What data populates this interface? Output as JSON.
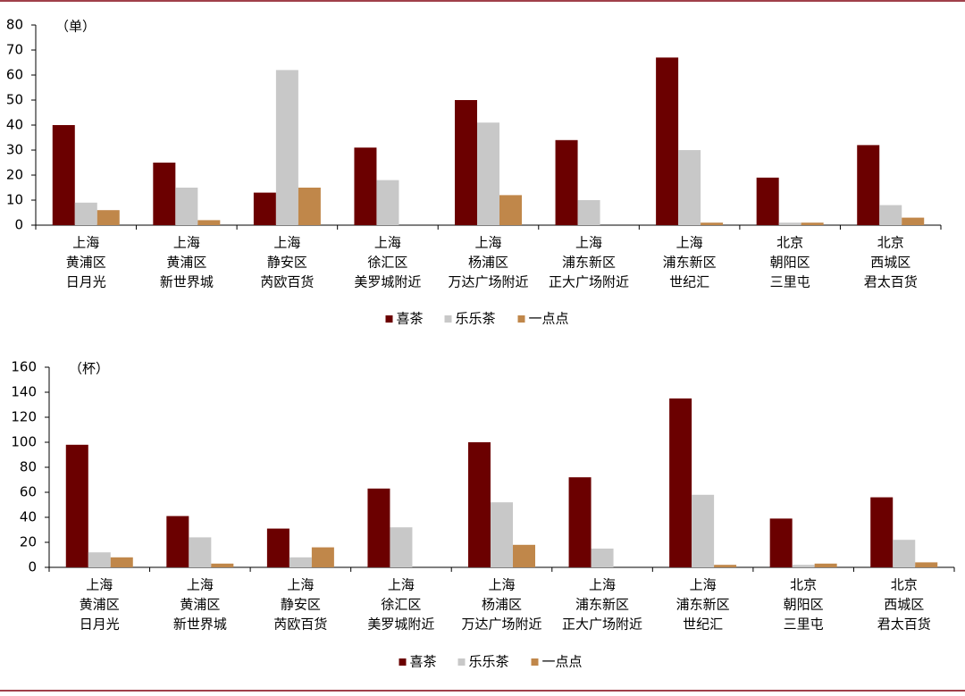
{
  "chart_data": [
    {
      "type": "bar",
      "unit_label": "（单）",
      "categories": [
        [
          "上海",
          "黄浦区",
          "日月光"
        ],
        [
          "上海",
          "黄浦区",
          "新世界城"
        ],
        [
          "上海",
          "静安区",
          "芮欧百货"
        ],
        [
          "上海",
          "徐汇区",
          "美罗城附近"
        ],
        [
          "上海",
          "杨浦区",
          "万达广场附近"
        ],
        [
          "上海",
          "浦东新区",
          "正大广场附近"
        ],
        [
          "上海",
          "浦东新区",
          "世纪汇"
        ],
        [
          "北京",
          "朝阳区",
          "三里屯"
        ],
        [
          "北京",
          "西城区",
          "君太百货"
        ]
      ],
      "series": [
        {
          "name": "喜茶",
          "color": "#6b0000",
          "values": [
            40,
            25,
            13,
            31,
            50,
            34,
            67,
            19,
            32
          ]
        },
        {
          "name": "乐乐茶",
          "color": "#c8c8c8",
          "values": [
            9,
            15,
            62,
            18,
            41,
            10,
            30,
            1,
            8
          ]
        },
        {
          "name": "一点点",
          "color": "#c0874a",
          "values": [
            6,
            2,
            15,
            null,
            12,
            null,
            1,
            1,
            3
          ]
        }
      ],
      "ylim": [
        0,
        80
      ],
      "yticks": [
        0,
        10,
        20,
        30,
        40,
        50,
        60,
        70,
        80
      ],
      "legend": "bottom"
    },
    {
      "type": "bar",
      "unit_label": "（杯）",
      "categories": [
        [
          "上海",
          "黄浦区",
          "日月光"
        ],
        [
          "上海",
          "黄浦区",
          "新世界城"
        ],
        [
          "上海",
          "静安区",
          "芮欧百货"
        ],
        [
          "上海",
          "徐汇区",
          "美罗城附近"
        ],
        [
          "上海",
          "杨浦区",
          "万达广场附近"
        ],
        [
          "上海",
          "浦东新区",
          "正大广场附近"
        ],
        [
          "上海",
          "浦东新区",
          "世纪汇"
        ],
        [
          "北京",
          "朝阳区",
          "三里屯"
        ],
        [
          "北京",
          "西城区",
          "君太百货"
        ]
      ],
      "series": [
        {
          "name": "喜茶",
          "color": "#6b0000",
          "values": [
            98,
            41,
            31,
            63,
            100,
            72,
            135,
            39,
            56
          ]
        },
        {
          "name": "乐乐茶",
          "color": "#c8c8c8",
          "values": [
            12,
            24,
            8,
            32,
            52,
            15,
            58,
            2,
            22
          ]
        },
        {
          "name": "一点点",
          "color": "#c0874a",
          "values": [
            8,
            3,
            16,
            null,
            18,
            null,
            2,
            3,
            4
          ]
        }
      ],
      "ylim": [
        0,
        160
      ],
      "yticks": [
        0,
        20,
        40,
        60,
        80,
        100,
        120,
        140,
        160
      ],
      "legend": "bottom"
    }
  ]
}
